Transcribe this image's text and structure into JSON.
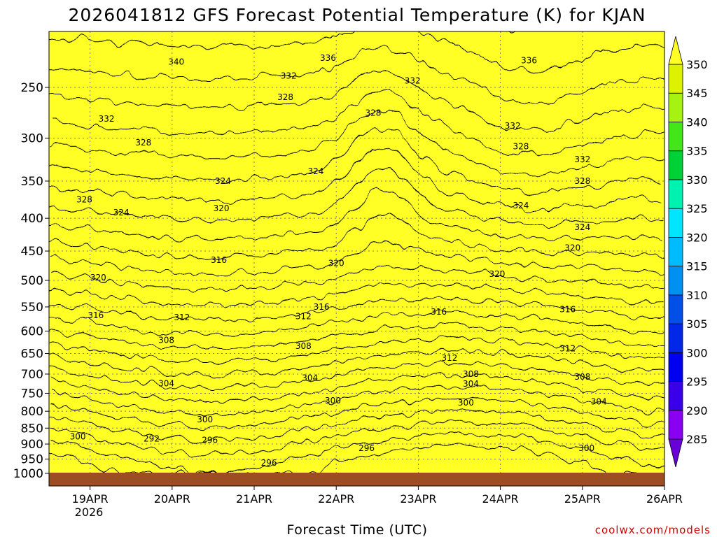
{
  "chart_data": {
    "type": "heatmap",
    "title": "2026041812 GFS Forecast Potential Temperature (K) for KJAN",
    "xlabel": "Forecast Time (UTC)",
    "ylabel": "",
    "credit": "coolwx.com/models",
    "x_ticks": [
      "19APR",
      "20APR",
      "21APR",
      "22APR",
      "23APR",
      "24APR",
      "25APR",
      "26APR"
    ],
    "x_year_label": "2026",
    "y_ticks": [
      250,
      300,
      350,
      400,
      450,
      500,
      550,
      600,
      650,
      700,
      750,
      800,
      850,
      900,
      950,
      1000
    ],
    "y_scale": "log pressure (hPa), increasing downward",
    "xlim_days": [
      18.5,
      26.0
    ],
    "ylim_hpa": [
      1010,
      200
    ],
    "colorbar": {
      "levels": [
        285,
        290,
        295,
        300,
        305,
        310,
        315,
        320,
        325,
        330,
        335,
        340,
        345,
        350
      ],
      "colors": [
        "#6a00d8",
        "#8a00f0",
        "#3a00e8",
        "#0000f0",
        "#0028e6",
        "#0050e8",
        "#0090f0",
        "#00bcff",
        "#00e6ff",
        "#00f2b0",
        "#00d235",
        "#44e61a",
        "#a6f212",
        "#dcf200",
        "#ffff26"
      ],
      "extend": "both"
    },
    "contour_interval_K": 2,
    "contour_labels": [
      {
        "day": 20.05,
        "hpa": 228,
        "value": 340
      },
      {
        "day": 21.9,
        "hpa": 225,
        "value": 336
      },
      {
        "day": 24.35,
        "hpa": 227,
        "value": 336
      },
      {
        "day": 21.42,
        "hpa": 240,
        "value": 332
      },
      {
        "day": 22.93,
        "hpa": 244,
        "value": 332
      },
      {
        "day": 24.15,
        "hpa": 287,
        "value": 332
      },
      {
        "day": 19.2,
        "hpa": 280,
        "value": 332
      },
      {
        "day": 25.0,
        "hpa": 324,
        "value": 332
      },
      {
        "day": 21.38,
        "hpa": 259,
        "value": 328
      },
      {
        "day": 22.45,
        "hpa": 274,
        "value": 328
      },
      {
        "day": 19.65,
        "hpa": 305,
        "value": 328
      },
      {
        "day": 24.25,
        "hpa": 309,
        "value": 328
      },
      {
        "day": 18.93,
        "hpa": 374,
        "value": 328
      },
      {
        "day": 25.0,
        "hpa": 350,
        "value": 328
      },
      {
        "day": 20.62,
        "hpa": 350,
        "value": 324
      },
      {
        "day": 21.75,
        "hpa": 338,
        "value": 324
      },
      {
        "day": 19.38,
        "hpa": 392,
        "value": 324
      },
      {
        "day": 24.25,
        "hpa": 382,
        "value": 324
      },
      {
        "day": 25.0,
        "hpa": 413,
        "value": 324
      },
      {
        "day": 20.6,
        "hpa": 386,
        "value": 320
      },
      {
        "day": 22.0,
        "hpa": 470,
        "value": 320
      },
      {
        "day": 19.1,
        "hpa": 495,
        "value": 320
      },
      {
        "day": 23.96,
        "hpa": 489,
        "value": 320
      },
      {
        "day": 24.88,
        "hpa": 445,
        "value": 320
      },
      {
        "day": 20.57,
        "hpa": 465,
        "value": 316
      },
      {
        "day": 21.82,
        "hpa": 550,
        "value": 316
      },
      {
        "day": 19.07,
        "hpa": 567,
        "value": 316
      },
      {
        "day": 23.25,
        "hpa": 560,
        "value": 316
      },
      {
        "day": 24.82,
        "hpa": 555,
        "value": 316
      },
      {
        "day": 20.12,
        "hpa": 571,
        "value": 312
      },
      {
        "day": 21.6,
        "hpa": 569,
        "value": 312
      },
      {
        "day": 23.38,
        "hpa": 661,
        "value": 312
      },
      {
        "day": 24.82,
        "hpa": 639,
        "value": 312
      },
      {
        "day": 19.93,
        "hpa": 620,
        "value": 308
      },
      {
        "day": 21.6,
        "hpa": 633,
        "value": 308
      },
      {
        "day": 23.64,
        "hpa": 700,
        "value": 308
      },
      {
        "day": 25.0,
        "hpa": 707,
        "value": 308
      },
      {
        "day": 19.93,
        "hpa": 724,
        "value": 304
      },
      {
        "day": 21.68,
        "hpa": 710,
        "value": 304
      },
      {
        "day": 23.64,
        "hpa": 725,
        "value": 304
      },
      {
        "day": 25.2,
        "hpa": 773,
        "value": 304
      },
      {
        "day": 20.4,
        "hpa": 824,
        "value": 300
      },
      {
        "day": 21.96,
        "hpa": 770,
        "value": 300
      },
      {
        "day": 23.58,
        "hpa": 776,
        "value": 300
      },
      {
        "day": 25.05,
        "hpa": 914,
        "value": 300
      },
      {
        "day": 18.85,
        "hpa": 876,
        "value": 300
      },
      {
        "day": 19.75,
        "hpa": 883,
        "value": 292
      },
      {
        "day": 20.46,
        "hpa": 888,
        "value": 296
      },
      {
        "day": 21.18,
        "hpa": 963,
        "value": 296
      },
      {
        "day": 22.37,
        "hpa": 914,
        "value": 296
      }
    ]
  }
}
